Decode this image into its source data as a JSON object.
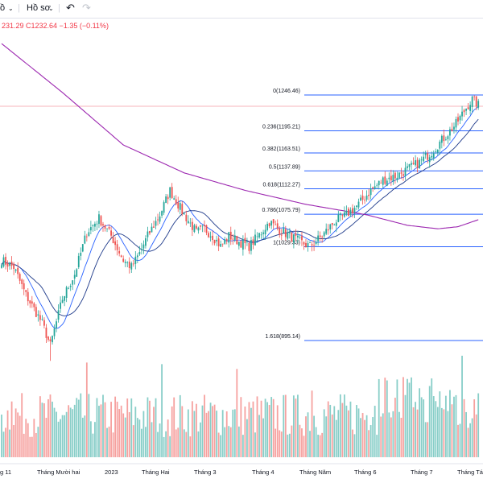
{
  "toolbar": {
    "interval_fragment": "ồ",
    "profile_label": "Hồ sơ",
    "dropdown_icon": "chevron-down-icon",
    "undo_icon": "undo-icon",
    "redo_icon": "redo-icon"
  },
  "ohlc_readout": {
    "text": "231.29  C1232.64  −1.35 (−0.11%)",
    "color": "#f23645"
  },
  "colors": {
    "up": "#26a69a",
    "down": "#ef5350",
    "ma_fast": "#2962ff",
    "ma_slow": "#9c27b0",
    "fib": "#2962ff",
    "fib_text": "#131722"
  },
  "chart_data": {
    "type": "candlestick",
    "y_range": [
      850,
      1300
    ],
    "x_labels": [
      "g 11",
      "Tháng Mười hai",
      "2023",
      "Tháng Hai",
      "Tháng 3",
      "Tháng 4",
      "Tháng Năm",
      "Tháng 6",
      "Tháng 7",
      "Tháng Tám"
    ],
    "fibonacci": [
      {
        "label": "0(1246.46)",
        "value": 1246.46
      },
      {
        "label": "0.236(1195.21)",
        "value": 1195.21
      },
      {
        "label": "0.382(1163.51)",
        "value": 1163.51
      },
      {
        "label": "0.5(1137.89)",
        "value": 1137.89
      },
      {
        "label": "0.618(1112.27)",
        "value": 1112.27
      },
      {
        "label": "0.786(1075.79)",
        "value": 1075.79
      },
      {
        "label": "1(1029.33)",
        "value": 1029.33
      },
      {
        "label": "1.618(895.14)",
        "value": 895.14
      }
    ],
    "price_anchors": [
      [
        0,
        1010
      ],
      [
        6,
        1000
      ],
      [
        12,
        960
      ],
      [
        20,
        920
      ],
      [
        24,
        888
      ],
      [
        30,
        955
      ],
      [
        36,
        990
      ],
      [
        42,
        1050
      ],
      [
        48,
        1070
      ],
      [
        54,
        1045
      ],
      [
        60,
        1010
      ],
      [
        64,
        1000
      ],
      [
        68,
        1020
      ],
      [
        72,
        1045
      ],
      [
        78,
        1075
      ],
      [
        83,
        1110
      ],
      [
        86,
        1095
      ],
      [
        90,
        1075
      ],
      [
        96,
        1050
      ],
      [
        100,
        1055
      ],
      [
        104,
        1045
      ],
      [
        108,
        1030
      ],
      [
        112,
        1045
      ],
      [
        118,
        1035
      ],
      [
        122,
        1030
      ],
      [
        128,
        1050
      ],
      [
        132,
        1065
      ],
      [
        136,
        1055
      ],
      [
        142,
        1045
      ],
      [
        148,
        1035
      ],
      [
        152,
        1030
      ],
      [
        158,
        1045
      ],
      [
        164,
        1065
      ],
      [
        170,
        1075
      ],
      [
        176,
        1090
      ],
      [
        182,
        1110
      ],
      [
        188,
        1125
      ],
      [
        194,
        1130
      ],
      [
        200,
        1140
      ],
      [
        206,
        1150
      ],
      [
        212,
        1165
      ],
      [
        218,
        1185
      ],
      [
        224,
        1205
      ],
      [
        229,
        1228
      ],
      [
        232,
        1240
      ],
      [
        235,
        1232
      ]
    ],
    "ma_slow_anchors": [
      [
        0,
        1320
      ],
      [
        30,
        1250
      ],
      [
        60,
        1175
      ],
      [
        90,
        1135
      ],
      [
        120,
        1110
      ],
      [
        150,
        1090
      ],
      [
        180,
        1075
      ],
      [
        200,
        1060
      ],
      [
        215,
        1055
      ],
      [
        225,
        1058
      ],
      [
        235,
        1068
      ]
    ]
  }
}
